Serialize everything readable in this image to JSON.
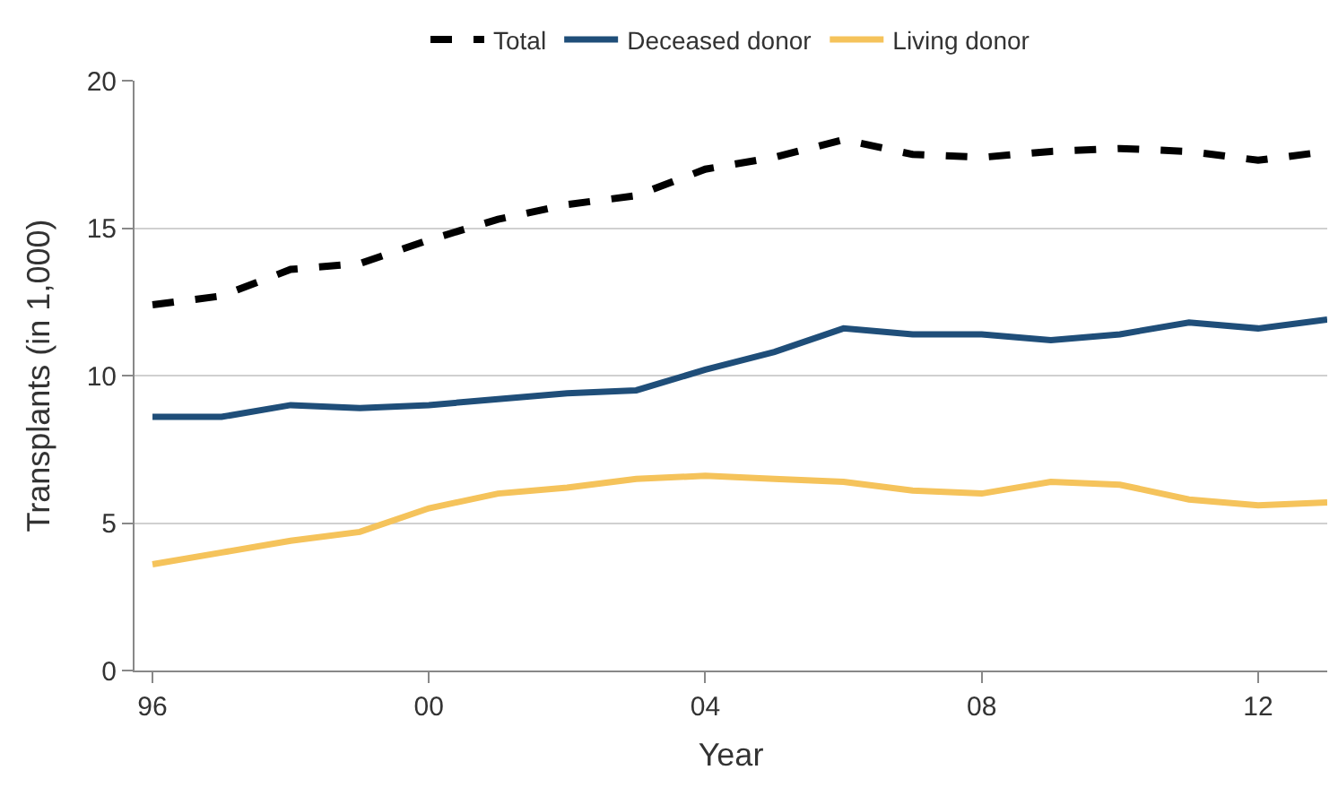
{
  "chart_data": {
    "type": "line",
    "xlabel": "Year",
    "ylabel": "Transplants (in 1,000)",
    "x": [
      1996,
      1997,
      1998,
      1999,
      2000,
      2001,
      2002,
      2003,
      2004,
      2005,
      2006,
      2007,
      2008,
      2009,
      2010,
      2011,
      2012,
      2013
    ],
    "series": [
      {
        "name": "Total",
        "color": "#000000",
        "line_style": "dashed",
        "values": [
          12.4,
          12.7,
          13.6,
          13.8,
          14.6,
          15.3,
          15.8,
          16.1,
          17.0,
          17.4,
          18.0,
          17.5,
          17.4,
          17.6,
          17.7,
          17.6,
          17.3,
          17.6
        ]
      },
      {
        "name": "Deceased donor",
        "color": "#1f4e79",
        "line_style": "solid",
        "values": [
          8.6,
          8.6,
          9.0,
          8.9,
          9.0,
          9.2,
          9.4,
          9.5,
          10.2,
          10.8,
          11.6,
          11.4,
          11.4,
          11.2,
          11.4,
          11.8,
          11.6,
          11.9
        ]
      },
      {
        "name": "Living donor",
        "color": "#f5c35b",
        "line_style": "solid",
        "values": [
          3.6,
          4.0,
          4.4,
          4.7,
          5.5,
          6.0,
          6.2,
          6.5,
          6.6,
          6.5,
          6.4,
          6.1,
          6.0,
          6.4,
          6.3,
          5.8,
          5.6,
          5.7
        ]
      }
    ],
    "xlim": [
      1995.74,
      2013.0
    ],
    "xticks": [
      {
        "value": 1996,
        "label": "96"
      },
      {
        "value": 2000,
        "label": "00"
      },
      {
        "value": 2004,
        "label": "04"
      },
      {
        "value": 2008,
        "label": "08"
      },
      {
        "value": 2012,
        "label": "12"
      }
    ],
    "ylim": [
      0,
      20
    ],
    "yticks": [
      0,
      5,
      10,
      15,
      20
    ],
    "grid": "y",
    "legend": "top",
    "marker": "none"
  }
}
